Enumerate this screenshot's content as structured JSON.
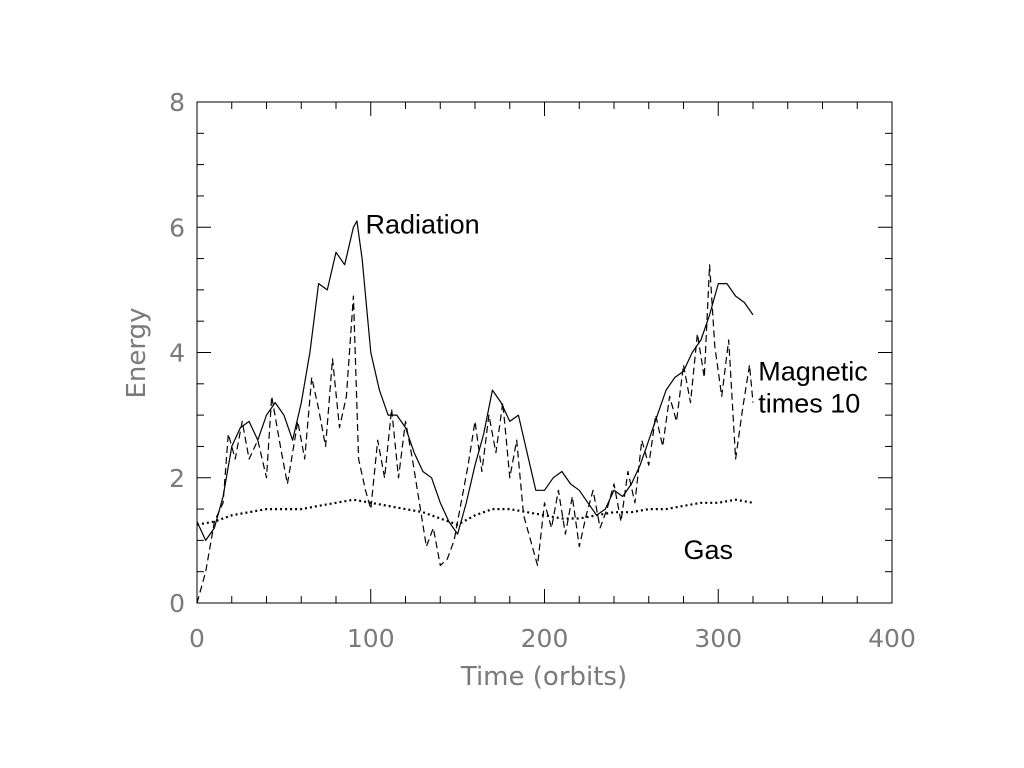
{
  "chart_data": {
    "type": "line",
    "title": "",
    "xlabel": "Time (orbits)",
    "ylabel": "Energy",
    "xlim": [
      0,
      400
    ],
    "ylim": [
      0,
      8
    ],
    "x_ticks": [
      0,
      100,
      200,
      300,
      400
    ],
    "x_tick_labels": [
      "0",
      "100",
      "200",
      "300",
      "400"
    ],
    "y_ticks": [
      0,
      2,
      4,
      6,
      8
    ],
    "y_tick_labels": [
      "0",
      "2",
      "4",
      "6",
      "8"
    ],
    "grid": false,
    "legend": "none",
    "series": [
      {
        "name": "Radiation",
        "style": "solid",
        "color": "#000000",
        "x": [
          0,
          5,
          10,
          15,
          20,
          25,
          30,
          35,
          40,
          45,
          50,
          55,
          60,
          65,
          70,
          75,
          80,
          85,
          90,
          92,
          95,
          100,
          105,
          110,
          115,
          120,
          125,
          130,
          135,
          140,
          145,
          150,
          155,
          160,
          165,
          170,
          175,
          180,
          185,
          190,
          195,
          200,
          205,
          210,
          215,
          220,
          225,
          230,
          235,
          240,
          245,
          250,
          255,
          260,
          265,
          270,
          275,
          280,
          285,
          290,
          295,
          300,
          305,
          310,
          315,
          320
        ],
        "y": [
          1.3,
          1.0,
          1.2,
          1.7,
          2.5,
          2.8,
          2.9,
          2.6,
          3.0,
          3.2,
          3.0,
          2.6,
          3.2,
          4.0,
          5.1,
          5.0,
          5.6,
          5.4,
          6.0,
          6.1,
          5.5,
          4.0,
          3.4,
          3.0,
          3.0,
          2.8,
          2.4,
          2.1,
          2.0,
          1.6,
          1.3,
          1.1,
          1.6,
          2.2,
          2.7,
          3.4,
          3.2,
          2.9,
          3.0,
          2.4,
          1.8,
          1.8,
          2.0,
          2.1,
          1.9,
          1.8,
          1.6,
          1.4,
          1.5,
          1.8,
          1.7,
          1.9,
          2.2,
          2.6,
          3.0,
          3.4,
          3.6,
          3.7,
          4.0,
          4.2,
          4.6,
          5.1,
          5.1,
          4.9,
          4.8,
          4.6
        ]
      },
      {
        "name": "Magnetic times 10",
        "style": "dashed",
        "color": "#000000",
        "x": [
          0,
          5,
          10,
          15,
          18,
          22,
          26,
          30,
          35,
          40,
          43,
          48,
          52,
          58,
          62,
          66,
          70,
          74,
          78,
          82,
          86,
          90,
          93,
          97,
          100,
          104,
          108,
          112,
          116,
          120,
          124,
          128,
          132,
          136,
          140,
          144,
          148,
          152,
          156,
          160,
          164,
          168,
          172,
          176,
          180,
          184,
          188,
          192,
          196,
          200,
          204,
          208,
          212,
          216,
          220,
          224,
          228,
          232,
          236,
          240,
          244,
          248,
          252,
          256,
          260,
          264,
          268,
          272,
          276,
          280,
          284,
          288,
          292,
          295,
          298,
          302,
          306,
          310,
          314,
          318,
          320
        ],
        "y": [
          0.0,
          0.5,
          1.3,
          1.6,
          2.7,
          2.3,
          2.9,
          2.3,
          2.6,
          2.0,
          3.3,
          2.5,
          1.9,
          2.9,
          2.3,
          3.6,
          3.1,
          2.5,
          3.9,
          2.8,
          3.3,
          4.9,
          2.3,
          1.8,
          1.5,
          2.6,
          2.0,
          3.1,
          2.0,
          2.9,
          2.3,
          1.6,
          0.9,
          1.2,
          0.6,
          0.7,
          1.0,
          1.6,
          2.2,
          2.9,
          2.1,
          3.0,
          2.4,
          3.2,
          2.0,
          2.6,
          1.4,
          1.0,
          0.6,
          1.6,
          1.2,
          1.8,
          1.1,
          1.7,
          0.9,
          1.4,
          1.8,
          1.2,
          1.5,
          1.9,
          1.3,
          2.1,
          1.6,
          2.6,
          2.2,
          3.0,
          2.5,
          3.3,
          2.9,
          3.8,
          3.2,
          4.3,
          3.6,
          5.4,
          4.1,
          3.3,
          4.2,
          2.3,
          3.1,
          3.8,
          3.2
        ]
      },
      {
        "name": "Gas",
        "style": "dotted",
        "color": "#000000",
        "x": [
          0,
          10,
          20,
          30,
          40,
          50,
          60,
          70,
          80,
          90,
          100,
          110,
          120,
          130,
          140,
          150,
          160,
          170,
          180,
          190,
          200,
          210,
          220,
          230,
          240,
          250,
          260,
          270,
          280,
          290,
          300,
          310,
          320
        ],
        "y": [
          1.25,
          1.3,
          1.4,
          1.45,
          1.5,
          1.5,
          1.5,
          1.55,
          1.6,
          1.65,
          1.6,
          1.55,
          1.5,
          1.45,
          1.35,
          1.25,
          1.4,
          1.5,
          1.5,
          1.45,
          1.4,
          1.35,
          1.35,
          1.4,
          1.45,
          1.45,
          1.5,
          1.5,
          1.55,
          1.6,
          1.6,
          1.65,
          1.6
        ]
      }
    ],
    "annotations": [
      {
        "lines": [
          "Radiation"
        ],
        "x": 97,
        "y": 5.9
      },
      {
        "lines": [
          "Magnetic",
          "times 10"
        ],
        "x": 323,
        "y": 3.55
      },
      {
        "lines": [
          "Gas"
        ],
        "x": 280,
        "y": 0.7
      }
    ]
  }
}
